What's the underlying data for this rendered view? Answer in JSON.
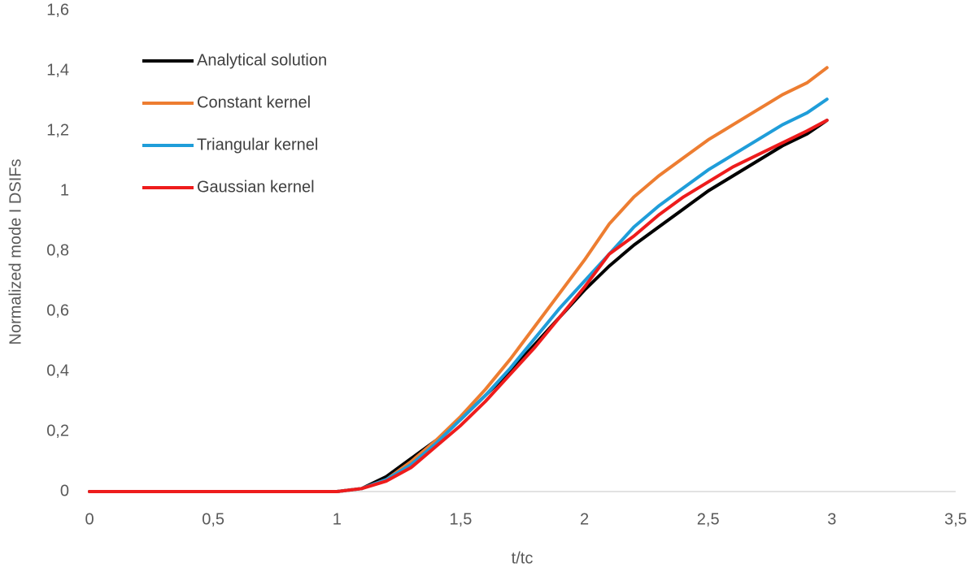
{
  "chart_data": {
    "type": "line",
    "x_label": "t/tc",
    "y_label": "Normalized mode I DSIFs",
    "x": [
      0,
      0.5,
      1,
      1.1,
      1.2,
      1.3,
      1.4,
      1.5,
      1.6,
      1.7,
      1.8,
      1.9,
      2.0,
      2.1,
      2.2,
      2.3,
      2.4,
      2.5,
      2.6,
      2.7,
      2.8,
      2.9,
      2.98
    ],
    "series": [
      {
        "name": "Analytical solution",
        "color": "#000000",
        "values": [
          0,
          0,
          0,
          0.01,
          0.05,
          0.11,
          0.17,
          0.24,
          0.32,
          0.4,
          0.49,
          0.58,
          0.67,
          0.75,
          0.82,
          0.88,
          0.94,
          1.0,
          1.05,
          1.1,
          1.15,
          1.19,
          1.235
        ]
      },
      {
        "name": "Constant kernel",
        "color": "#ed7d31",
        "values": [
          0,
          0,
          0,
          0.01,
          0.04,
          0.1,
          0.17,
          0.25,
          0.34,
          0.44,
          0.55,
          0.66,
          0.77,
          0.89,
          0.98,
          1.05,
          1.11,
          1.17,
          1.22,
          1.27,
          1.32,
          1.36,
          1.41
        ]
      },
      {
        "name": "Triangular kernel",
        "color": "#1f9dd9",
        "values": [
          0,
          0,
          0,
          0.01,
          0.04,
          0.09,
          0.16,
          0.24,
          0.32,
          0.41,
          0.51,
          0.61,
          0.7,
          0.79,
          0.88,
          0.95,
          1.01,
          1.07,
          1.12,
          1.17,
          1.22,
          1.26,
          1.305
        ]
      },
      {
        "name": "Gaussian kernel",
        "color": "#ee1c1c",
        "values": [
          0,
          0,
          0,
          0.01,
          0.035,
          0.08,
          0.15,
          0.22,
          0.3,
          0.39,
          0.48,
          0.58,
          0.68,
          0.79,
          0.85,
          0.92,
          0.98,
          1.03,
          1.08,
          1.12,
          1.16,
          1.2,
          1.235
        ]
      }
    ],
    "xlim": [
      0,
      3.5
    ],
    "xticks": [
      0,
      {
        "value": 0.5,
        "label": "0,5"
      },
      1,
      {
        "value": 1.5,
        "label": "1,5"
      },
      2,
      {
        "value": 2.5,
        "label": "2,5"
      },
      3,
      {
        "value": 3.5,
        "label": "3,5"
      }
    ],
    "ylim": [
      0,
      1.6
    ],
    "yticks": [
      0,
      {
        "value": 0.2,
        "label": "0,2"
      },
      {
        "value": 0.4,
        "label": "0,4"
      },
      {
        "value": 0.6,
        "label": "0,6"
      },
      {
        "value": 0.8,
        "label": "0,8"
      },
      1,
      {
        "value": 1.2,
        "label": "1,2"
      },
      {
        "value": 1.4,
        "label": "1,4"
      },
      {
        "value": 1.6,
        "label": "1,6"
      }
    ],
    "grid": false,
    "legend": "top-left"
  }
}
